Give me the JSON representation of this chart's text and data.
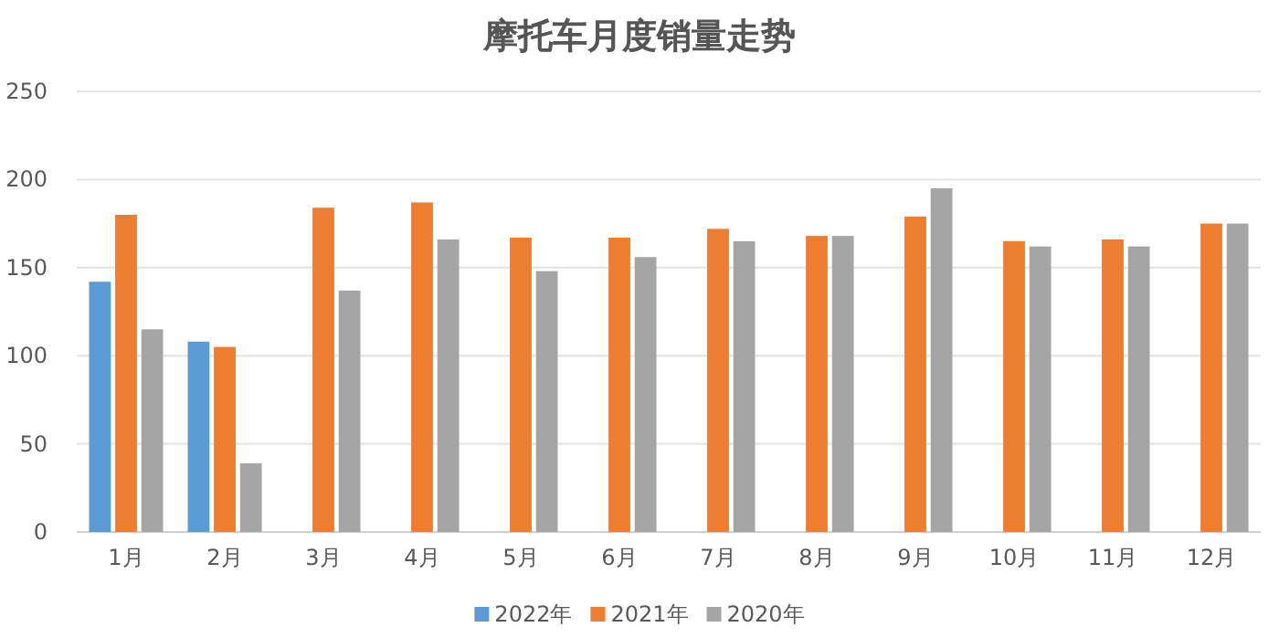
{
  "chart_data": {
    "type": "bar",
    "title": "摩托车月度销量走势",
    "categories": [
      "1月",
      "2月",
      "3月",
      "4月",
      "5月",
      "6月",
      "7月",
      "8月",
      "9月",
      "10月",
      "11月",
      "12月"
    ],
    "series": [
      {
        "name": "2022年",
        "color": "#5b9bd5",
        "values": [
          142,
          108,
          null,
          null,
          null,
          null,
          null,
          null,
          null,
          null,
          null,
          null
        ]
      },
      {
        "name": "2021年",
        "color": "#ed7d31",
        "values": [
          180,
          105,
          184,
          187,
          167,
          167,
          172,
          168,
          179,
          165,
          166,
          175
        ]
      },
      {
        "name": "2020年",
        "color": "#a5a5a5",
        "values": [
          115,
          39,
          137,
          166,
          148,
          156,
          165,
          168,
          195,
          162,
          162,
          175
        ]
      }
    ],
    "ylim": [
      0,
      250
    ],
    "yticks": [
      0,
      50,
      100,
      150,
      200,
      250
    ],
    "grid": "y",
    "legend": "bottom"
  }
}
